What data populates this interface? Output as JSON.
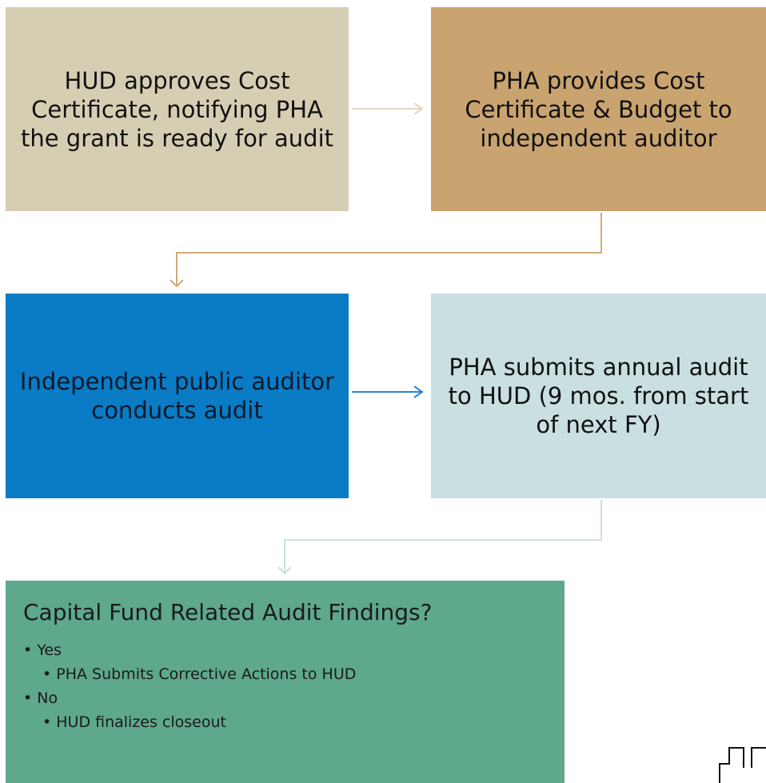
{
  "nodes": [
    {
      "label": "HUD approves Cost Certificate, notifying PHA the grant is ready for audit"
    },
    {
      "label": "PHA provides Cost Certificate & Budget to independent auditor"
    },
    {
      "label": "Independent public auditor conducts audit"
    },
    {
      "label": "PHA submits annual audit to HUD (9 mos. from start of next FY)"
    },
    {
      "label": "Capital Fund Related Audit Findings?",
      "items": [
        {
          "text": "Yes",
          "sub": [
            "PHA Submits Corrective Actions to HUD"
          ]
        },
        {
          "text": "No",
          "sub": [
            "HUD finalizes closeout"
          ]
        }
      ]
    }
  ]
}
